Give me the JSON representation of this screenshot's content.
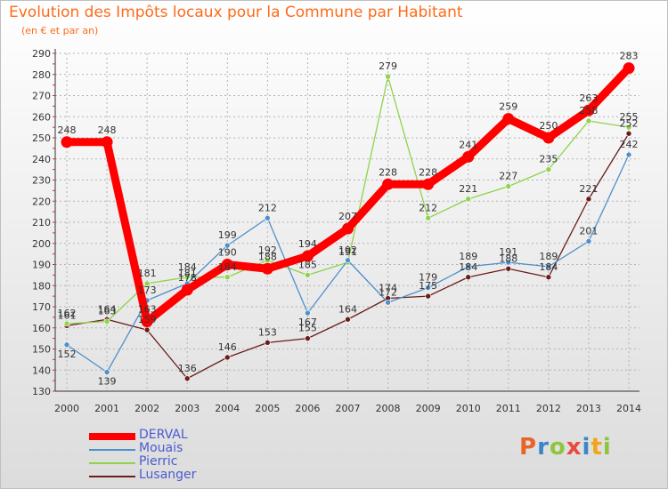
{
  "header": {
    "title": "Evolution des Impôts locaux pour la Commune par Habitant",
    "subtitle": "(en € et par an)"
  },
  "logo": {
    "text": "Proxiti",
    "colors": [
      "#e8652a",
      "#3a86c8",
      "#8cc63f",
      "#e84c3d",
      "#3a86c8",
      "#f2a516",
      "#8cc63f"
    ]
  },
  "chart_data": {
    "type": "line",
    "categories": [
      "2000",
      "2001",
      "2002",
      "2003",
      "2004",
      "2005",
      "2006",
      "2007",
      "2008",
      "2009",
      "2010",
      "2011",
      "2012",
      "2013",
      "2014"
    ],
    "ylim": [
      130,
      290
    ],
    "yticks": [
      130,
      140,
      150,
      160,
      170,
      180,
      190,
      200,
      210,
      220,
      230,
      240,
      250,
      260,
      270,
      280,
      290
    ],
    "grid": true,
    "legend_position": "bottom-left",
    "series": [
      {
        "name": "DERVAL",
        "color": "#ff0000",
        "values": [
          248,
          248,
          163,
          178,
          190,
          188,
          194,
          207,
          228,
          228,
          241,
          259,
          250,
          263,
          283
        ],
        "labels": [
          "248",
          "248",
          "163",
          "178",
          "190",
          "188",
          "194",
          "207",
          "228",
          "228",
          "241",
          "259",
          "250",
          "263",
          "283"
        ]
      },
      {
        "name": "Mouais",
        "color": "#4f8fca",
        "values": [
          152,
          139,
          173,
          181,
          199,
          212,
          167,
          192,
          172,
          179,
          189,
          191,
          189,
          201,
          242
        ],
        "labels": [
          "152",
          "139",
          "173",
          "181",
          "199",
          "212",
          "167",
          "192",
          "172",
          "179",
          "189",
          "191",
          "189",
          "201",
          "242"
        ]
      },
      {
        "name": "Pierric",
        "color": "#8ed34a",
        "values": [
          162,
          163,
          181,
          184,
          184,
          192,
          185,
          191,
          279,
          212,
          221,
          227,
          235,
          258,
          255
        ],
        "labels": [
          "162",
          "163",
          "181",
          "184",
          "184",
          "192",
          "185",
          "191",
          "279",
          "212",
          "221",
          "227",
          "235",
          "258",
          "255"
        ]
      },
      {
        "name": "Lusanger",
        "color": "#6b1d1d",
        "values": [
          161,
          164,
          159,
          136,
          146,
          153,
          155,
          164,
          174,
          175,
          184,
          188,
          184,
          221,
          252
        ],
        "labels": [
          "161",
          "164",
          "159",
          "136",
          "146",
          "153",
          "155",
          "164",
          "174",
          "175",
          "184",
          "188",
          "184",
          "221",
          "252"
        ]
      }
    ]
  }
}
